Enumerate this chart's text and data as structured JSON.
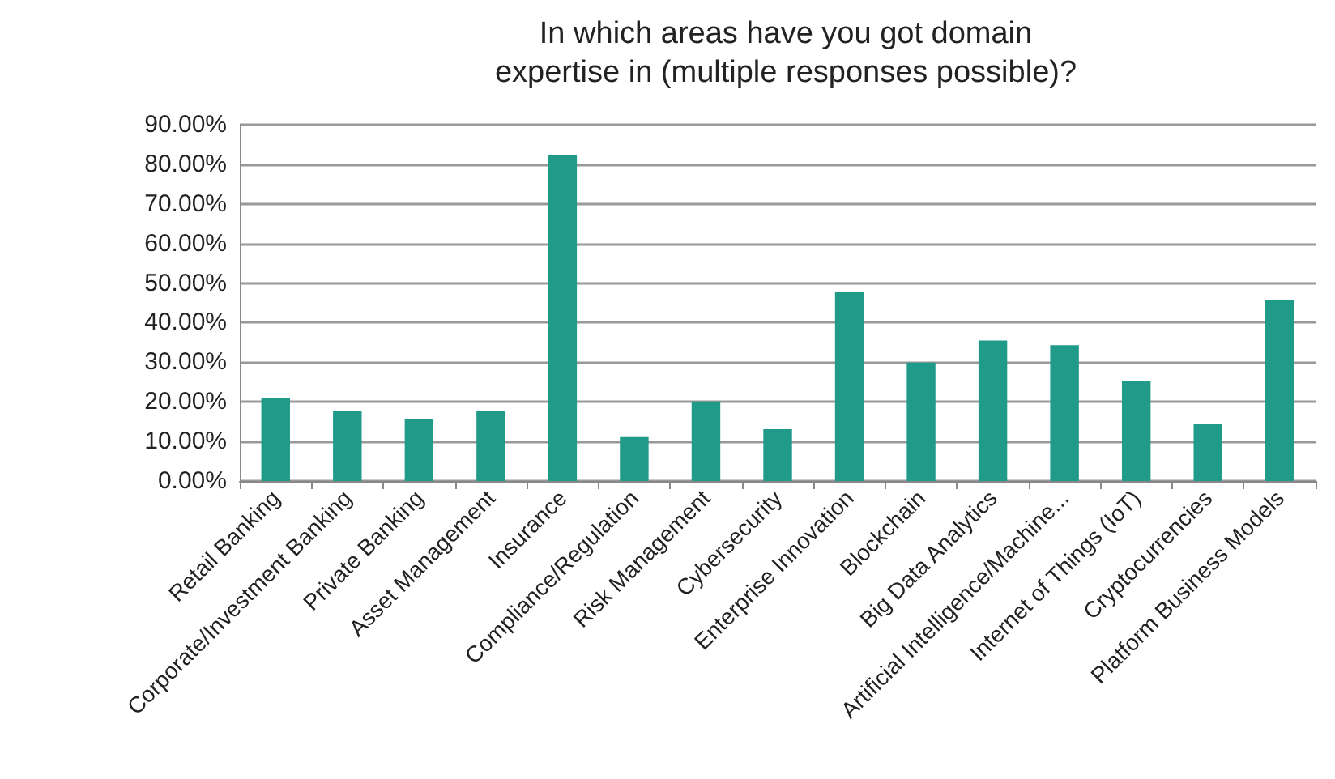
{
  "chart_data": {
    "type": "bar",
    "title": "In which areas have you got domain\nexpertise in (multiple responses possible)?",
    "categories": [
      "Retail Banking",
      "Corporate/Investment Banking",
      "Private Banking",
      "Asset Management",
      "Insurance",
      "Compliance/Regulation",
      "Risk Management",
      "Cybersecurity",
      "Enterprise Innovation",
      "Blockchain",
      "Big Data Analytics",
      "Artificial Intelligence/Machine...",
      "Internet of Things (IoT)",
      "Cryptocurrencies",
      "Platform Business Models"
    ],
    "values": [
      20.9,
      17.6,
      15.6,
      17.6,
      82.4,
      11.1,
      20.1,
      13.1,
      47.7,
      29.9,
      35.5,
      34.3,
      25.3,
      14.4,
      45.7
    ],
    "color": "#209b8a",
    "ylim": [
      0,
      90
    ],
    "yticks": [
      {
        "value": 0,
        "label": "0.00%"
      },
      {
        "value": 10,
        "label": "10.00%"
      },
      {
        "value": 20,
        "label": "20.00%"
      },
      {
        "value": 30,
        "label": "30.00%"
      },
      {
        "value": 40,
        "label": "40.00%"
      },
      {
        "value": 50,
        "label": "50.00%"
      },
      {
        "value": 60,
        "label": "60.00%"
      },
      {
        "value": 70,
        "label": "70.00%"
      },
      {
        "value": 80,
        "label": "80.00%"
      },
      {
        "value": 90,
        "label": "90.00%"
      }
    ],
    "grid": "y"
  }
}
